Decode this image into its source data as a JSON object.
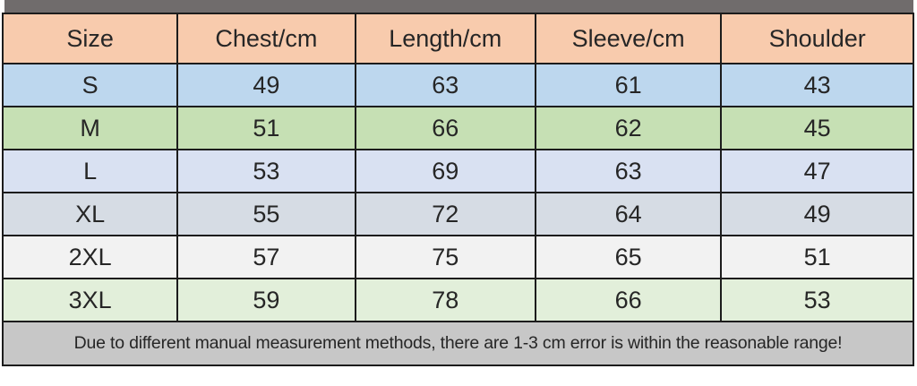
{
  "colors": {
    "top_bar_bg": "#706c6c",
    "header_bg": "#f8cbad",
    "row_bgs": [
      "#bdd7ee",
      "#c6e0b4",
      "#d9e1f2",
      "#d6dce4",
      "#f2f2f2",
      "#e2efda"
    ],
    "footer_bg": "#c7c7c7",
    "border": "#1c1c1c",
    "text": "#262626"
  },
  "chart_data": {
    "type": "table",
    "columns": [
      "Size",
      "Chest/cm",
      "Length/cm",
      "Sleeve/cm",
      "Shoulder"
    ],
    "rows": [
      [
        "S",
        49,
        63,
        61,
        43
      ],
      [
        "M",
        51,
        66,
        62,
        45
      ],
      [
        "L",
        53,
        69,
        63,
        47
      ],
      [
        "XL",
        55,
        72,
        64,
        49
      ],
      [
        "2XL",
        57,
        75,
        65,
        51
      ],
      [
        "3XL",
        59,
        78,
        66,
        53
      ]
    ],
    "note": "Due to different manual measurement methods, there are 1-3 cm error is within the reasonable range!"
  }
}
